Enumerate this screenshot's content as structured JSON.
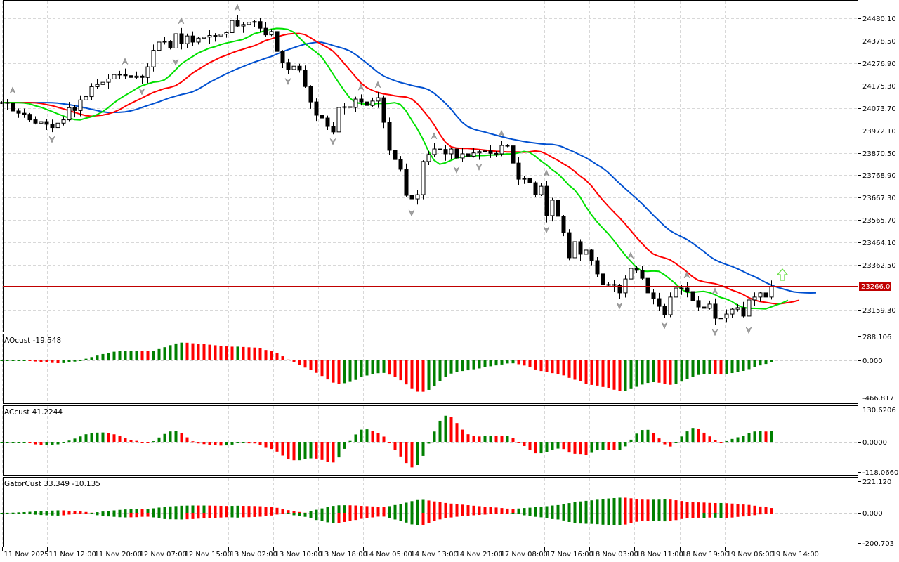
{
  "chart_data": {
    "type": "candlestick",
    "symbol_timeframe": "hourly",
    "price_axis_ticks": [
      "24480.10",
      "24378.50",
      "24276.90",
      "24175.30",
      "24073.70",
      "23972.10",
      "23870.50",
      "23768.90",
      "23667.30",
      "23565.70",
      "23464.10",
      "23362.50",
      "23159.30"
    ],
    "price_range": [
      23120,
      24490
    ],
    "current_price": "23266.06",
    "time_labels": [
      "11 Nov 2025",
      "11 Nov 12:00",
      "11 Nov 20:00",
      "12 Nov 07:00",
      "12 Nov 15:00",
      "13 Nov 02:00",
      "13 Nov 10:00",
      "13 Nov 18:00",
      "14 Nov 05:00",
      "14 Nov 13:00",
      "14 Nov 21:00",
      "17 Nov 08:00",
      "17 Nov 16:00",
      "18 Nov 03:00",
      "18 Nov 11:00",
      "18 Nov 19:00",
      "19 Nov 06:00",
      "19 Nov 14:00"
    ],
    "closes": [
      24098,
      24095,
      24060,
      24050,
      24045,
      24020,
      24005,
      24012,
      24000,
      23985,
      24005,
      24020,
      24075,
      24062,
      24110,
      24125,
      24170,
      24180,
      24190,
      24205,
      24225,
      24226,
      24220,
      24212,
      24218,
      24212,
      24260,
      24335,
      24372,
      24375,
      24345,
      24410,
      24365,
      24400,
      24372,
      24390,
      24395,
      24402,
      24400,
      24408,
      24415,
      24470,
      24445,
      24452,
      24462,
      24465,
      24435,
      24405,
      24420,
      24330,
      24280,
      24248,
      24263,
      24245,
      24171,
      24101,
      24041,
      24028,
      23990,
      23965,
      24076,
      24079,
      24076,
      24114,
      24101,
      24085,
      24105,
      24120,
      24009,
      23882,
      23840,
      23796,
      23678,
      23662,
      23681,
      23831,
      23863,
      23888,
      23886,
      23866,
      23888,
      23847,
      23866,
      23855,
      23870,
      23876,
      23879,
      23868,
      23866,
      23904,
      23902,
      23824,
      23751,
      23754,
      23735,
      23681,
      23719,
      23586,
      23656,
      23583,
      23509,
      23395,
      23468,
      23411,
      23430,
      23382,
      23322,
      23274,
      23274,
      23271,
      23236,
      23299,
      23347,
      23338,
      23302,
      23236,
      23210,
      23175,
      23137,
      23217,
      23258,
      23258,
      23242,
      23201,
      23172,
      23166,
      23185,
      23121,
      23122,
      23140,
      23162,
      23169,
      23131,
      23204,
      23217,
      23236,
      23217,
      23266
    ],
    "alligator": {
      "jaw": {
        "period": 13,
        "shift": 8,
        "color": "#0050d0"
      },
      "teeth": {
        "period": 8,
        "shift": 5,
        "color": "#ff0000"
      },
      "lips": {
        "period": 5,
        "shift": 3,
        "color": "#00e000"
      }
    },
    "panes": [
      {
        "id": "ao",
        "label": "AOcust -19.548",
        "ticks": [
          "288.106",
          "0.000",
          "-466.817"
        ],
        "range": [
          -466.817,
          288.106
        ]
      },
      {
        "id": "ac",
        "label": "ACcust 41.2244",
        "ticks": [
          "130.6206",
          "0.0000",
          "-118.0660"
        ],
        "range": [
          -118.066,
          130.6206
        ]
      },
      {
        "id": "gator",
        "label": "GatorCust 33.349 -10.135",
        "ticks": [
          "221.120",
          "0.000",
          "-200.703"
        ],
        "range": [
          -200.703,
          221.12
        ]
      }
    ],
    "colors": {
      "up": "#008000",
      "down": "#ff0000",
      "current_price": "#c00000",
      "signal_arrow": "#66dd44"
    }
  }
}
